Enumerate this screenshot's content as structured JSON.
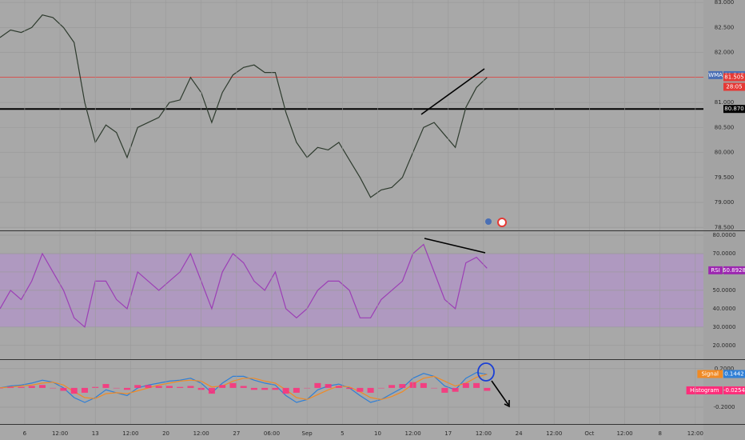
{
  "chart_data": [
    {
      "type": "line",
      "xlim": [
        -0.7,
        19.23
      ],
      "x": [
        -0.7,
        -0.4,
        -0.1,
        0.2,
        0.5,
        0.8,
        1.1,
        1.4,
        1.7,
        2.0,
        2.3,
        2.6,
        2.9,
        3.2,
        3.5,
        3.8,
        4.1,
        4.4,
        4.7,
        5.0,
        5.3,
        5.6,
        5.9,
        6.2,
        6.5,
        6.8,
        7.1,
        7.4,
        7.7,
        8.0,
        8.3,
        8.6,
        8.9,
        9.2,
        9.5,
        9.8,
        10.1,
        10.4,
        10.7,
        11.0,
        11.3,
        11.6,
        11.9,
        12.2,
        12.5,
        12.8,
        13.1
      ],
      "series": [
        {
          "color": "#2e3b2e",
          "values": [
            82.3,
            82.45,
            82.4,
            82.5,
            82.75,
            82.7,
            82.5,
            82.2,
            81.0,
            80.2,
            80.55,
            80.4,
            79.9,
            80.5,
            80.6,
            80.7,
            81.0,
            81.05,
            81.5,
            81.2,
            80.6,
            81.2,
            81.55,
            81.7,
            81.75,
            81.6,
            81.6,
            80.8,
            80.2,
            79.9,
            80.1,
            80.05,
            80.2,
            79.85,
            79.5,
            79.1,
            79.25,
            79.3,
            79.5,
            80.0,
            80.5,
            80.6,
            80.35,
            80.1,
            80.9,
            81.3,
            81.5
          ]
        }
      ],
      "ylim": [
        78.44,
        83.05
      ],
      "yticks": [
        {
          "value": 83,
          "label": "83.000"
        },
        {
          "value": 82.5,
          "label": "82.500"
        },
        {
          "value": 82,
          "label": "82.000"
        },
        {
          "value": 81,
          "label": "81.000"
        },
        {
          "value": 80.5,
          "label": "80.500"
        },
        {
          "value": 80,
          "label": "80.000"
        },
        {
          "value": 79.5,
          "label": "79.500"
        },
        {
          "value": 79,
          "label": "79.000"
        },
        {
          "value": 78.5,
          "label": "78.500"
        }
      ],
      "grid": true,
      "markers": [
        {
          "name": "WMA",
          "value": 81.547,
          "label": "81.547",
          "color": "#4a6fb5"
        },
        {
          "value": 81.505,
          "label": "81.505",
          "color": "#e53935",
          "line": true
        },
        {
          "value": 80.87,
          "label": "80.870",
          "color": "#000000",
          "line": true
        }
      ],
      "countdown": "28:05"
    },
    {
      "type": "line",
      "xlim": [
        -0.7,
        19.23
      ],
      "x": [
        -0.7,
        -0.4,
        -0.1,
        0.2,
        0.5,
        0.8,
        1.1,
        1.4,
        1.7,
        2.0,
        2.3,
        2.6,
        2.9,
        3.2,
        3.5,
        3.8,
        4.1,
        4.4,
        4.7,
        5.0,
        5.3,
        5.6,
        5.9,
        6.2,
        6.5,
        6.8,
        7.1,
        7.4,
        7.7,
        8.0,
        8.3,
        8.6,
        8.9,
        9.2,
        9.5,
        9.8,
        10.1,
        10.4,
        10.7,
        11.0,
        11.3,
        11.6,
        11.9,
        12.2,
        12.5,
        12.8,
        13.1
      ],
      "series": [
        {
          "color": "#9c3fb5",
          "values": [
            40,
            50,
            45,
            55,
            70,
            60,
            50,
            35,
            30,
            55,
            55,
            45,
            40,
            60,
            55,
            50,
            55,
            60,
            70,
            55,
            40,
            60,
            70,
            65,
            55,
            50,
            60,
            40,
            35,
            40,
            50,
            55,
            55,
            50,
            35,
            35,
            45,
            50,
            55,
            70,
            75,
            60,
            45,
            40,
            65,
            68,
            62
          ]
        }
      ],
      "ylim": [
        12.5,
        81.75
      ],
      "yticks": [
        {
          "value": 80,
          "label": "80.0000"
        },
        {
          "value": 70,
          "label": "70.0000"
        },
        {
          "value": 60,
          "label": "60.0000"
        },
        {
          "value": 50,
          "label": "50.0000"
        },
        {
          "value": 40,
          "label": "40.0000"
        },
        {
          "value": 30,
          "label": "30.0000"
        },
        {
          "value": 20,
          "label": "20.0000"
        }
      ],
      "grid": true,
      "band": [
        30,
        70
      ],
      "band_color": "#b48fd0",
      "markers": [
        {
          "name": "RSI",
          "value": 60.8928,
          "label": "60.8928",
          "color": "#9c27b0"
        }
      ]
    },
    {
      "type": "line",
      "xlim": [
        -0.7,
        19.23
      ],
      "x": [
        -0.7,
        -0.4,
        -0.1,
        0.2,
        0.5,
        0.8,
        1.1,
        1.4,
        1.7,
        2.0,
        2.3,
        2.6,
        2.9,
        3.2,
        3.5,
        3.8,
        4.1,
        4.4,
        4.7,
        5.0,
        5.3,
        5.6,
        5.9,
        6.2,
        6.5,
        6.8,
        7.1,
        7.4,
        7.7,
        8.0,
        8.3,
        8.6,
        8.9,
        9.2,
        9.5,
        9.8,
        10.1,
        10.4,
        10.7,
        11.0,
        11.3,
        11.6,
        11.9,
        12.2,
        12.5,
        12.8,
        13.1
      ],
      "series": [
        {
          "color": "#2f7fd6",
          "values": [
            0,
            0.02,
            0.03,
            0.05,
            0.08,
            0.06,
            0.0,
            -0.1,
            -0.15,
            -0.1,
            -0.02,
            -0.05,
            -0.08,
            0.0,
            0.03,
            0.05,
            0.07,
            0.08,
            0.1,
            0.05,
            -0.05,
            0.05,
            0.12,
            0.12,
            0.08,
            0.05,
            0.03,
            -0.08,
            -0.15,
            -0.12,
            -0.02,
            0.02,
            0.04,
            0.0,
            -0.08,
            -0.15,
            -0.12,
            -0.06,
            0.0,
            0.1,
            0.15,
            0.12,
            0.02,
            -0.02,
            0.1,
            0.16,
            0.14
          ]
        },
        {
          "color": "#f08a24",
          "values": [
            0,
            0.01,
            0.02,
            0.03,
            0.05,
            0.06,
            0.03,
            -0.04,
            -0.1,
            -0.11,
            -0.06,
            -0.05,
            -0.06,
            -0.03,
            0,
            0.03,
            0.05,
            0.07,
            0.08,
            0.07,
            0.01,
            0.02,
            0.07,
            0.1,
            0.1,
            0.07,
            0.05,
            -0.02,
            -0.1,
            -0.12,
            -0.07,
            -0.02,
            0.02,
            0.01,
            -0.04,
            -0.1,
            -0.12,
            -0.09,
            -0.04,
            0.04,
            0.1,
            0.12,
            0.07,
            0.02,
            0.05,
            0.11,
            0.14
          ]
        },
        {
          "color": "#ff2d7a",
          "style": "bar",
          "values": [
            0,
            0.01,
            0.01,
            0.02,
            0.03,
            0,
            -0.03,
            -0.06,
            -0.05,
            0.01,
            0.04,
            0,
            -0.02,
            0.03,
            0.03,
            0.02,
            0.02,
            0.01,
            0.02,
            -0.02,
            -0.06,
            0.03,
            0.05,
            0.02,
            -0.02,
            -0.02,
            -0.02,
            -0.06,
            -0.05,
            0,
            0.05,
            0.04,
            0.02,
            -0.01,
            -0.04,
            -0.05,
            0,
            0.03,
            0.04,
            0.06,
            0.05,
            0,
            -0.05,
            -0.04,
            0.05,
            0.05,
            -0.03
          ]
        }
      ],
      "ylim": [
        -0.374,
        0.281
      ],
      "yticks": [
        {
          "value": 0.2,
          "label": "0.2000"
        },
        {
          "value": -0.2,
          "label": "-0.2000"
        }
      ],
      "grid": true,
      "xticks": [
        {
          "value": 0,
          "label": "6"
        },
        {
          "value": 1,
          "label": "12:00"
        },
        {
          "value": 2,
          "label": "13"
        },
        {
          "value": 3,
          "label": "12:00"
        },
        {
          "value": 4,
          "label": "20"
        },
        {
          "value": 5,
          "label": "12:00"
        },
        {
          "value": 6,
          "label": "27"
        },
        {
          "value": 7,
          "label": "06:00"
        },
        {
          "value": 8,
          "label": "Sep"
        },
        {
          "value": 9,
          "label": "5"
        },
        {
          "value": 10,
          "label": "10"
        },
        {
          "value": 11,
          "label": "12:00"
        },
        {
          "value": 12,
          "label": "17"
        },
        {
          "value": 13,
          "label": "12:00"
        },
        {
          "value": 14,
          "label": "24"
        },
        {
          "value": 15,
          "label": "12:00"
        },
        {
          "value": 16,
          "label": "Oct"
        },
        {
          "value": 17,
          "label": "12:00"
        },
        {
          "value": 18,
          "label": "8"
        },
        {
          "value": 19,
          "label": "12:00"
        }
      ],
      "markers": [
        {
          "name": "Signal",
          "value": 0.1442,
          "label": "0.1442",
          "color": "#2f7fd6",
          "name_color": "#f08a24"
        },
        {
          "name": "Histogram",
          "value": -0.0254,
          "label": "-0.0254",
          "color": "#ff2d7a",
          "name_color": "#ff2d7a"
        }
      ]
    }
  ]
}
